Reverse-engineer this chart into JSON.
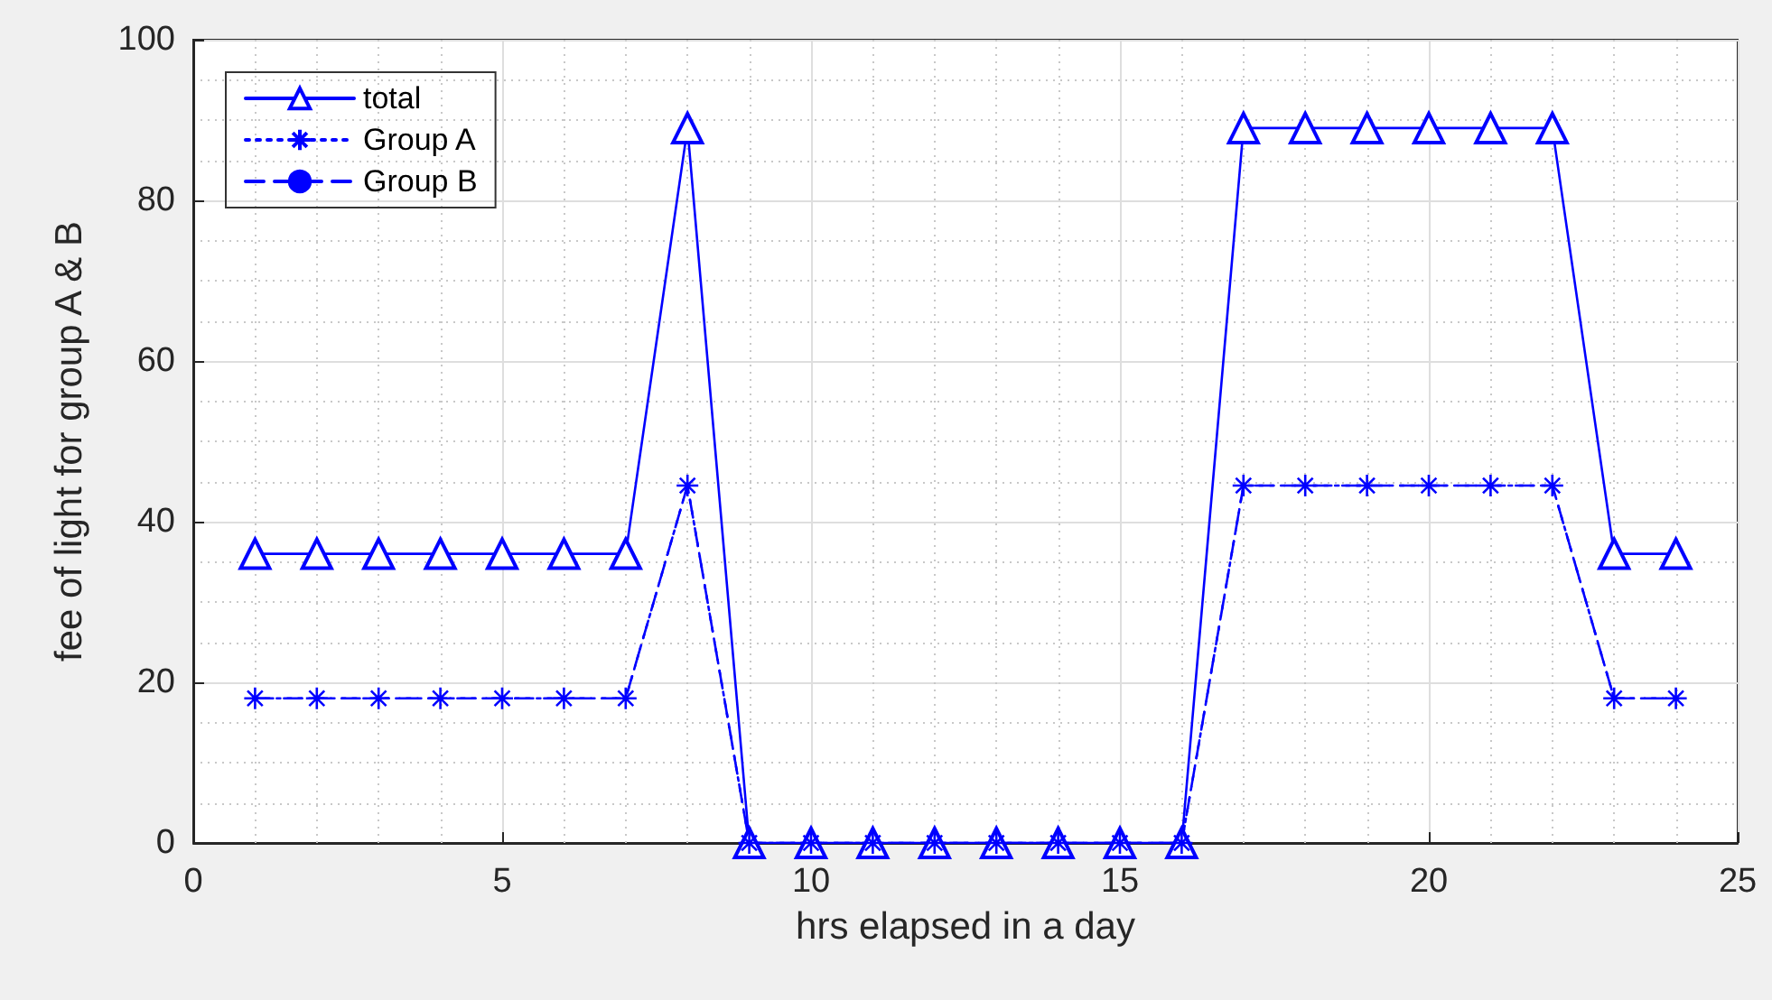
{
  "chart_data": {
    "type": "line",
    "xlabel": "hrs elapsed in a day",
    "ylabel": "fee of light for group A & B",
    "x": [
      1,
      2,
      3,
      4,
      5,
      6,
      7,
      8,
      9,
      10,
      11,
      12,
      13,
      14,
      15,
      16,
      17,
      18,
      19,
      20,
      21,
      22,
      23,
      24
    ],
    "series": [
      {
        "name": "total",
        "color": "#0000ff",
        "marker": "triangle",
        "line_style": "solid",
        "values": [
          36,
          36,
          36,
          36,
          36,
          36,
          36,
          89,
          0,
          0,
          0,
          0,
          0,
          0,
          0,
          0,
          89,
          89,
          89,
          89,
          89,
          89,
          36,
          36
        ]
      },
      {
        "name": "Group A",
        "color": "#0000ff",
        "marker": "cross",
        "line_style": "dotted",
        "values": [
          18,
          18,
          18,
          18,
          18,
          18,
          18,
          44.5,
          0,
          0,
          0,
          0,
          0,
          0,
          0,
          0,
          44.5,
          44.5,
          44.5,
          44.5,
          44.5,
          44.5,
          18,
          18
        ]
      },
      {
        "name": "Group B",
        "color": "#0000ff",
        "marker": "none",
        "line_style": "dashed",
        "values": [
          18,
          18,
          18,
          18,
          18,
          18,
          18,
          44.5,
          0,
          0,
          0,
          0,
          0,
          0,
          0,
          0,
          44.5,
          44.5,
          44.5,
          44.5,
          44.5,
          44.5,
          18,
          18
        ]
      }
    ],
    "xlim": [
      0,
      25
    ],
    "xticks": [
      0,
      5,
      10,
      15,
      20,
      25
    ],
    "ylim": [
      0,
      100
    ],
    "yticks": [
      0,
      20,
      40,
      60,
      80,
      100
    ],
    "grid": true,
    "legend": "top left"
  }
}
